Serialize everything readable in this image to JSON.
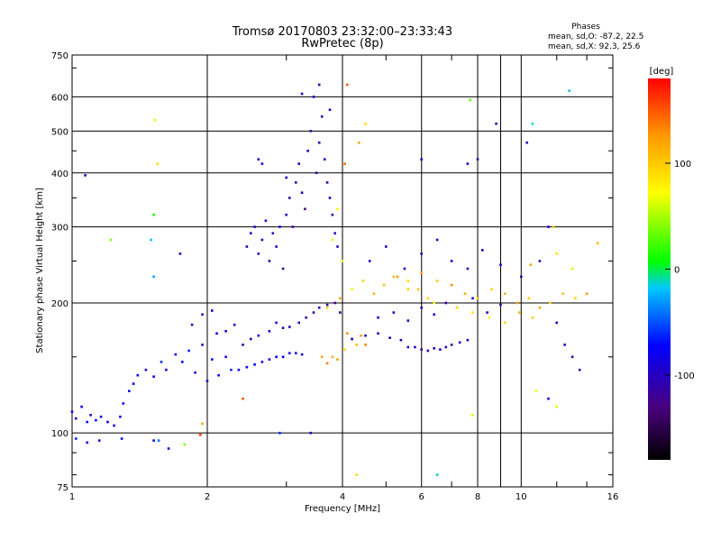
{
  "chart_data": {
    "type": "scatter",
    "title": "Tromsø 20170803 23:32:00–23:33:43",
    "subtitle": "RwPretec (8p)",
    "xlabel": "Frequency [MHz]",
    "ylabel": "Stationary phase Virtual Height [km]",
    "x_scale": "log",
    "y_scale": "log",
    "xlim": [
      1,
      16
    ],
    "ylim": [
      75,
      750
    ],
    "x_ticks": [
      1,
      2,
      4,
      6,
      8,
      10,
      16
    ],
    "y_ticks": [
      75,
      100,
      200,
      300,
      400,
      500,
      600,
      750
    ],
    "grid": true,
    "phases_box": {
      "title": "Phases",
      "line_o": "mean, sd,O: -87.2, 22.5",
      "line_x": "mean, sd,X:  92.3, 25.6"
    },
    "colorbar": {
      "label": "[deg]",
      "range": [
        -180,
        180
      ],
      "ticks": [
        100,
        0,
        -100
      ],
      "colors": [
        "#000000",
        "#4a0080",
        "#0000ff",
        "#00c8ff",
        "#00ff00",
        "#ffff00",
        "#ff9900",
        "#ff0000"
      ]
    },
    "series": [
      {
        "points": [
          [
            1.0,
            112,
            -90
          ],
          [
            1.02,
            108,
            -95
          ],
          [
            1.05,
            115,
            -85
          ],
          [
            1.08,
            106,
            -80
          ],
          [
            1.1,
            110,
            -100
          ],
          [
            1.13,
            107,
            -70
          ],
          [
            1.16,
            109,
            -90
          ],
          [
            1.2,
            106,
            -95
          ],
          [
            1.24,
            104,
            -85
          ],
          [
            1.28,
            109,
            -80
          ],
          [
            1.3,
            117,
            -75
          ],
          [
            1.34,
            125,
            -70
          ],
          [
            1.37,
            130,
            -80
          ],
          [
            1.02,
            97,
            -60
          ],
          [
            1.08,
            95,
            -75
          ],
          [
            1.15,
            96,
            -90
          ],
          [
            1.29,
            97,
            -70
          ],
          [
            1.52,
            96,
            -95
          ],
          [
            1.56,
            96,
            -40
          ],
          [
            1.64,
            92,
            -80
          ],
          [
            1.78,
            94,
            40
          ],
          [
            1.93,
            99,
            160
          ]
        ]
      },
      {
        "points": [
          [
            1.4,
            136,
            -70
          ],
          [
            1.46,
            140,
            -85
          ],
          [
            1.52,
            135,
            -75
          ],
          [
            1.58,
            146,
            -60
          ],
          [
            1.62,
            140,
            -90
          ],
          [
            1.7,
            152,
            -80
          ],
          [
            1.76,
            146,
            -70
          ],
          [
            1.82,
            155,
            -65
          ],
          [
            1.88,
            138,
            -85
          ],
          [
            1.95,
            160,
            -95
          ],
          [
            2.0,
            132,
            -80
          ],
          [
            2.05,
            148,
            -70
          ],
          [
            2.12,
            136,
            -75
          ],
          [
            2.2,
            150,
            -85
          ],
          [
            2.26,
            140,
            -60
          ],
          [
            2.35,
            140,
            -75
          ],
          [
            2.45,
            142,
            -80
          ],
          [
            2.55,
            144,
            -70
          ],
          [
            2.65,
            146,
            -90
          ],
          [
            2.75,
            148,
            -85
          ],
          [
            2.85,
            150,
            -80
          ],
          [
            2.95,
            150,
            -75
          ],
          [
            3.05,
            153,
            -85
          ],
          [
            3.15,
            153,
            -90
          ],
          [
            3.25,
            152,
            -95
          ],
          [
            1.85,
            178,
            -100
          ],
          [
            1.95,
            188,
            -110
          ],
          [
            2.05,
            192,
            -100
          ],
          [
            2.1,
            170,
            -90
          ],
          [
            2.2,
            172,
            -105
          ],
          [
            2.3,
            178,
            -95
          ],
          [
            2.4,
            160,
            -110
          ],
          [
            2.5,
            165,
            -100
          ],
          [
            2.6,
            168,
            -90
          ],
          [
            2.75,
            172,
            -95
          ],
          [
            2.85,
            180,
            -100
          ],
          [
            2.95,
            175,
            -110
          ],
          [
            3.05,
            176,
            -105
          ],
          [
            3.2,
            180,
            -100
          ],
          [
            3.32,
            185,
            -120
          ],
          [
            3.45,
            190,
            -115
          ],
          [
            3.55,
            195,
            -110
          ],
          [
            3.7,
            198,
            -120
          ],
          [
            3.85,
            200,
            -130
          ],
          [
            3.95,
            190,
            -115
          ]
        ]
      },
      {
        "points": [
          [
            2.45,
            270,
            -100
          ],
          [
            2.5,
            290,
            -90
          ],
          [
            2.55,
            300,
            -110
          ],
          [
            2.6,
            260,
            -95
          ],
          [
            2.65,
            280,
            -100
          ],
          [
            2.7,
            310,
            -90
          ],
          [
            2.75,
            250,
            -110
          ],
          [
            2.8,
            290,
            -105
          ],
          [
            2.85,
            270,
            -100
          ],
          [
            2.9,
            300,
            -95
          ],
          [
            2.95,
            240,
            -120
          ],
          [
            3.0,
            320,
            -100
          ],
          [
            3.05,
            350,
            -110
          ],
          [
            3.1,
            300,
            -120
          ],
          [
            3.15,
            380,
            -115
          ],
          [
            3.2,
            420,
            -105
          ],
          [
            3.25,
            360,
            -100
          ],
          [
            3.3,
            330,
            -120
          ],
          [
            3.35,
            450,
            -110
          ],
          [
            3.4,
            500,
            -120
          ],
          [
            3.45,
            600,
            -100
          ],
          [
            3.5,
            400,
            -115
          ],
          [
            3.55,
            470,
            -105
          ],
          [
            3.6,
            540,
            -110
          ],
          [
            3.65,
            430,
            -100
          ],
          [
            3.7,
            380,
            -120
          ],
          [
            3.75,
            350,
            -95
          ],
          [
            3.8,
            320,
            -105
          ],
          [
            3.85,
            290,
            -100
          ],
          [
            3.9,
            270,
            -110
          ],
          [
            2.65,
            420,
            -90
          ],
          [
            3.0,
            390,
            -95
          ],
          [
            3.25,
            610,
            -100
          ],
          [
            3.55,
            640,
            -110
          ],
          [
            3.75,
            560,
            -90
          ]
        ]
      },
      {
        "points": [
          [
            3.6,
            150,
            120
          ],
          [
            3.7,
            145,
            135
          ],
          [
            3.8,
            150,
            110
          ],
          [
            3.9,
            148,
            125
          ],
          [
            4.05,
            156,
            90
          ],
          [
            4.1,
            170,
            130
          ],
          [
            4.2,
            165,
            140
          ],
          [
            4.3,
            160,
            110
          ],
          [
            4.4,
            168,
            125
          ],
          [
            4.5,
            160,
            135
          ],
          [
            3.7,
            195,
            100
          ],
          [
            3.95,
            205,
            120
          ],
          [
            4.2,
            215,
            80
          ],
          [
            4.45,
            225,
            95
          ],
          [
            4.7,
            210,
            110
          ],
          [
            4.95,
            220,
            100
          ],
          [
            5.3,
            230,
            125
          ],
          [
            5.6,
            225,
            90
          ],
          [
            5.9,
            215,
            105
          ],
          [
            6.2,
            205,
            95
          ],
          [
            3.9,
            330,
            80
          ],
          [
            4.05,
            420,
            140
          ],
          [
            4.1,
            640,
            150
          ],
          [
            4.35,
            470,
            120
          ],
          [
            4.5,
            520,
            90
          ],
          [
            3.8,
            280,
            60
          ],
          [
            4.0,
            250,
            70
          ]
        ]
      },
      {
        "points": [
          [
            5.6,
            158,
            -100
          ],
          [
            5.8,
            158,
            -95
          ],
          [
            6.0,
            156,
            -110
          ],
          [
            6.2,
            155,
            -105
          ],
          [
            6.4,
            157,
            -100
          ],
          [
            6.6,
            156,
            -95
          ],
          [
            6.8,
            158,
            -110
          ],
          [
            7.0,
            160,
            -105
          ],
          [
            7.3,
            162,
            -100
          ],
          [
            7.6,
            164,
            -95
          ],
          [
            4.2,
            165,
            -100
          ],
          [
            4.5,
            168,
            -95
          ],
          [
            4.8,
            170,
            -105
          ],
          [
            5.1,
            166,
            -100
          ],
          [
            5.4,
            164,
            -110
          ],
          [
            4.8,
            185,
            -90
          ],
          [
            5.2,
            190,
            -100
          ],
          [
            5.6,
            182,
            -95
          ],
          [
            6.0,
            195,
            -110
          ],
          [
            6.4,
            188,
            -100
          ],
          [
            6.8,
            200,
            -105
          ],
          [
            7.2,
            195,
            -95
          ],
          [
            7.8,
            205,
            -100
          ],
          [
            8.4,
            190,
            -110
          ],
          [
            9.0,
            198,
            -105
          ],
          [
            4.6,
            250,
            -100
          ],
          [
            5.0,
            270,
            -90
          ],
          [
            5.5,
            240,
            -95
          ],
          [
            6.0,
            260,
            -110
          ],
          [
            6.5,
            280,
            -100
          ],
          [
            7.0,
            250,
            -95
          ],
          [
            7.6,
            240,
            -100
          ],
          [
            8.2,
            265,
            -105
          ],
          [
            9.0,
            245,
            -95
          ],
          [
            10.0,
            230,
            -110
          ],
          [
            6.0,
            430,
            -90
          ],
          [
            7.6,
            420,
            -100
          ],
          [
            8.8,
            520,
            -110
          ],
          [
            10.3,
            470,
            -100
          ],
          [
            11.5,
            300,
            -95
          ],
          [
            11.0,
            250,
            -110
          ],
          [
            12.0,
            180,
            -100
          ],
          [
            12.5,
            160,
            -90
          ],
          [
            13.0,
            150,
            -105
          ],
          [
            13.5,
            140,
            -100
          ],
          [
            11.5,
            120,
            -95
          ],
          [
            12.0,
            115,
            60
          ],
          [
            10.8,
            125,
            70
          ]
        ]
      },
      {
        "points": [
          [
            5.2,
            230,
            110
          ],
          [
            5.6,
            215,
            95
          ],
          [
            6.0,
            235,
            120
          ],
          [
            6.5,
            225,
            100
          ],
          [
            7.0,
            220,
            130
          ],
          [
            7.5,
            210,
            115
          ],
          [
            8.0,
            205,
            105
          ],
          [
            8.6,
            215,
            95
          ],
          [
            9.2,
            210,
            110
          ],
          [
            9.8,
            200,
            120
          ],
          [
            10.4,
            205,
            100
          ],
          [
            11.0,
            195,
            115
          ],
          [
            11.6,
            200,
            90
          ],
          [
            12.4,
            210,
            105
          ],
          [
            13.2,
            205,
            95
          ],
          [
            14.0,
            210,
            125
          ],
          [
            14.8,
            275,
            110
          ],
          [
            11.8,
            300,
            100
          ],
          [
            7.8,
            190,
            85
          ],
          [
            8.5,
            185,
            80
          ],
          [
            9.2,
            180,
            95
          ],
          [
            9.9,
            190,
            110
          ],
          [
            10.6,
            185,
            100
          ],
          [
            6.4,
            200,
            75
          ],
          [
            7.2,
            195,
            90
          ],
          [
            13.0,
            240,
            60
          ],
          [
            12.0,
            260,
            85
          ],
          [
            10.5,
            245,
            120
          ]
        ]
      },
      {
        "points": [
          [
            1.53,
            530,
            80
          ],
          [
            1.55,
            420,
            90
          ],
          [
            1.52,
            320,
            10
          ],
          [
            1.5,
            280,
            -20
          ],
          [
            1.52,
            230,
            -30
          ],
          [
            1.22,
            280,
            40
          ],
          [
            1.07,
            395,
            -110
          ],
          [
            1.74,
            260,
            -100
          ],
          [
            2.6,
            430,
            -100
          ],
          [
            12.8,
            620,
            -20
          ],
          [
            10.6,
            520,
            -10
          ],
          [
            7.7,
            590,
            30
          ],
          [
            8.0,
            430,
            -110
          ],
          [
            6.5,
            80,
            -10
          ],
          [
            7.8,
            110,
            60
          ],
          [
            4.3,
            80,
            90
          ],
          [
            3.4,
            100,
            -100
          ],
          [
            2.9,
            100,
            -60
          ],
          [
            1.95,
            105,
            120
          ],
          [
            2.4,
            120,
            150
          ]
        ]
      }
    ]
  }
}
